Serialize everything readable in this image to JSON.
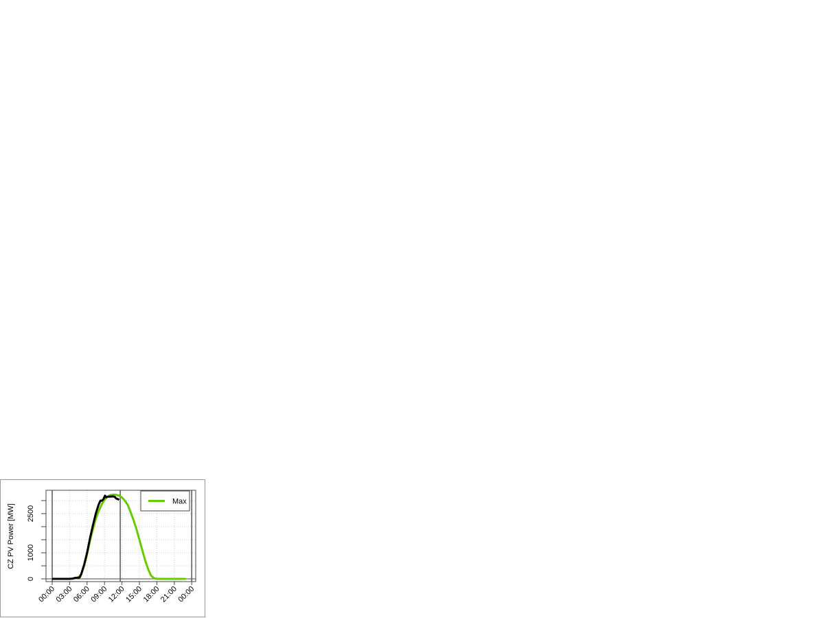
{
  "chart_data": {
    "type": "line",
    "title": "",
    "xlabel": "",
    "ylabel": "CZ PV Power [MW]",
    "x_tick_labels": [
      "00:00",
      "03:00",
      "06:00",
      "09:00",
      "12:00",
      "15:00",
      "18:00",
      "21:00",
      "00:00"
    ],
    "xlim_hours": [
      0,
      24
    ],
    "y_ticks": [
      0,
      500,
      1000,
      1500,
      2000,
      2500,
      3000
    ],
    "y_tick_labels": {
      "0": "0",
      "1000": "1000",
      "2500": "2500"
    },
    "ylim": [
      -100,
      3400
    ],
    "grid": true,
    "legend_position": "top-right",
    "vertical_markers_hours": [
      0,
      11.7,
      24
    ],
    "series": [
      {
        "name": "Max",
        "color": "#66cc00",
        "x_hours": [
          0,
          3,
          3.5,
          4,
          4.5,
          5,
          5.5,
          6,
          6.5,
          7,
          7.5,
          8,
          8.5,
          9,
          9.5,
          10,
          10.5,
          11,
          11.5,
          12,
          12.5,
          13,
          13.5,
          14,
          14.5,
          15,
          15.5,
          16,
          16.5,
          17,
          17.5,
          18,
          19,
          20,
          21,
          22,
          23
        ],
        "values": [
          0,
          0,
          5,
          20,
          60,
          180,
          500,
          950,
          1450,
          1900,
          2300,
          2600,
          2850,
          3030,
          3150,
          3210,
          3230,
          3225,
          3190,
          3120,
          3000,
          2830,
          2550,
          2250,
          1900,
          1500,
          1100,
          700,
          380,
          130,
          30,
          0,
          0,
          0,
          0,
          0,
          0
        ]
      },
      {
        "name": "",
        "color": "#000000",
        "x_hours": [
          0,
          3,
          3.5,
          4,
          4.5,
          4.75,
          5,
          5.5,
          6,
          6.5,
          7,
          7.5,
          8,
          8.3,
          8.5,
          8.8,
          9.1,
          9.3,
          9.6,
          10,
          10.5,
          10.8,
          11,
          11.25,
          11.5
        ],
        "values": [
          0,
          0,
          10,
          40,
          45,
          60,
          180,
          550,
          1000,
          1550,
          2050,
          2500,
          2850,
          3000,
          2990,
          3050,
          3190,
          3130,
          3150,
          3150,
          3160,
          3140,
          3080,
          3060,
          3030
        ]
      }
    ]
  }
}
